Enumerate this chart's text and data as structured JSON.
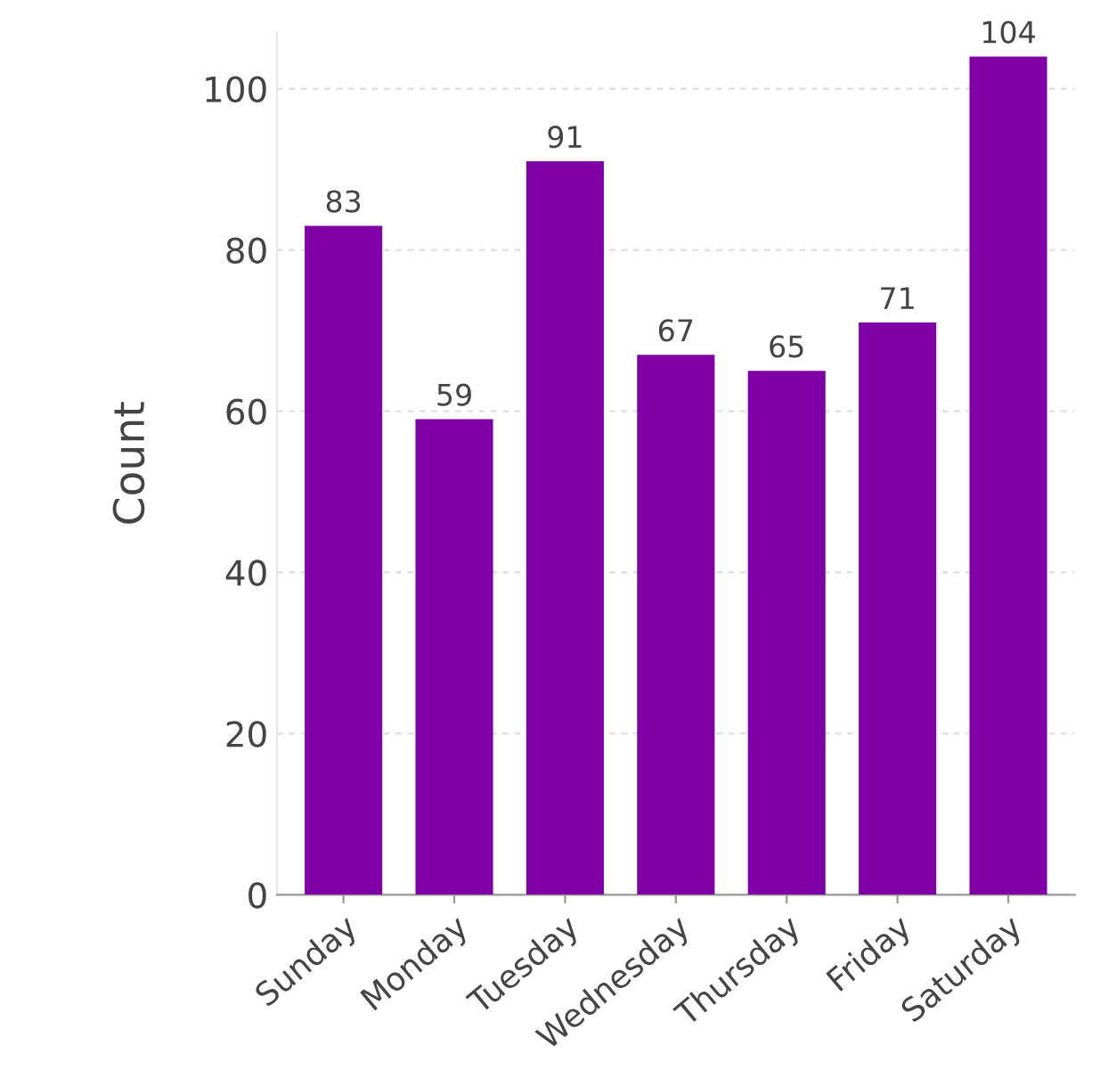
{
  "chart_data": {
    "type": "bar",
    "ylabel": "Count",
    "categories": [
      "Sunday",
      "Monday",
      "Tuesday",
      "Wednesday",
      "Thursday",
      "Friday",
      "Saturday"
    ],
    "values": [
      83,
      59,
      91,
      67,
      65,
      71,
      104
    ],
    "color": "#8000a8",
    "ylim": [
      0,
      107
    ],
    "yticks": [
      0,
      20,
      40,
      60,
      80,
      100
    ],
    "grid": "y",
    "data_labels": true
  }
}
